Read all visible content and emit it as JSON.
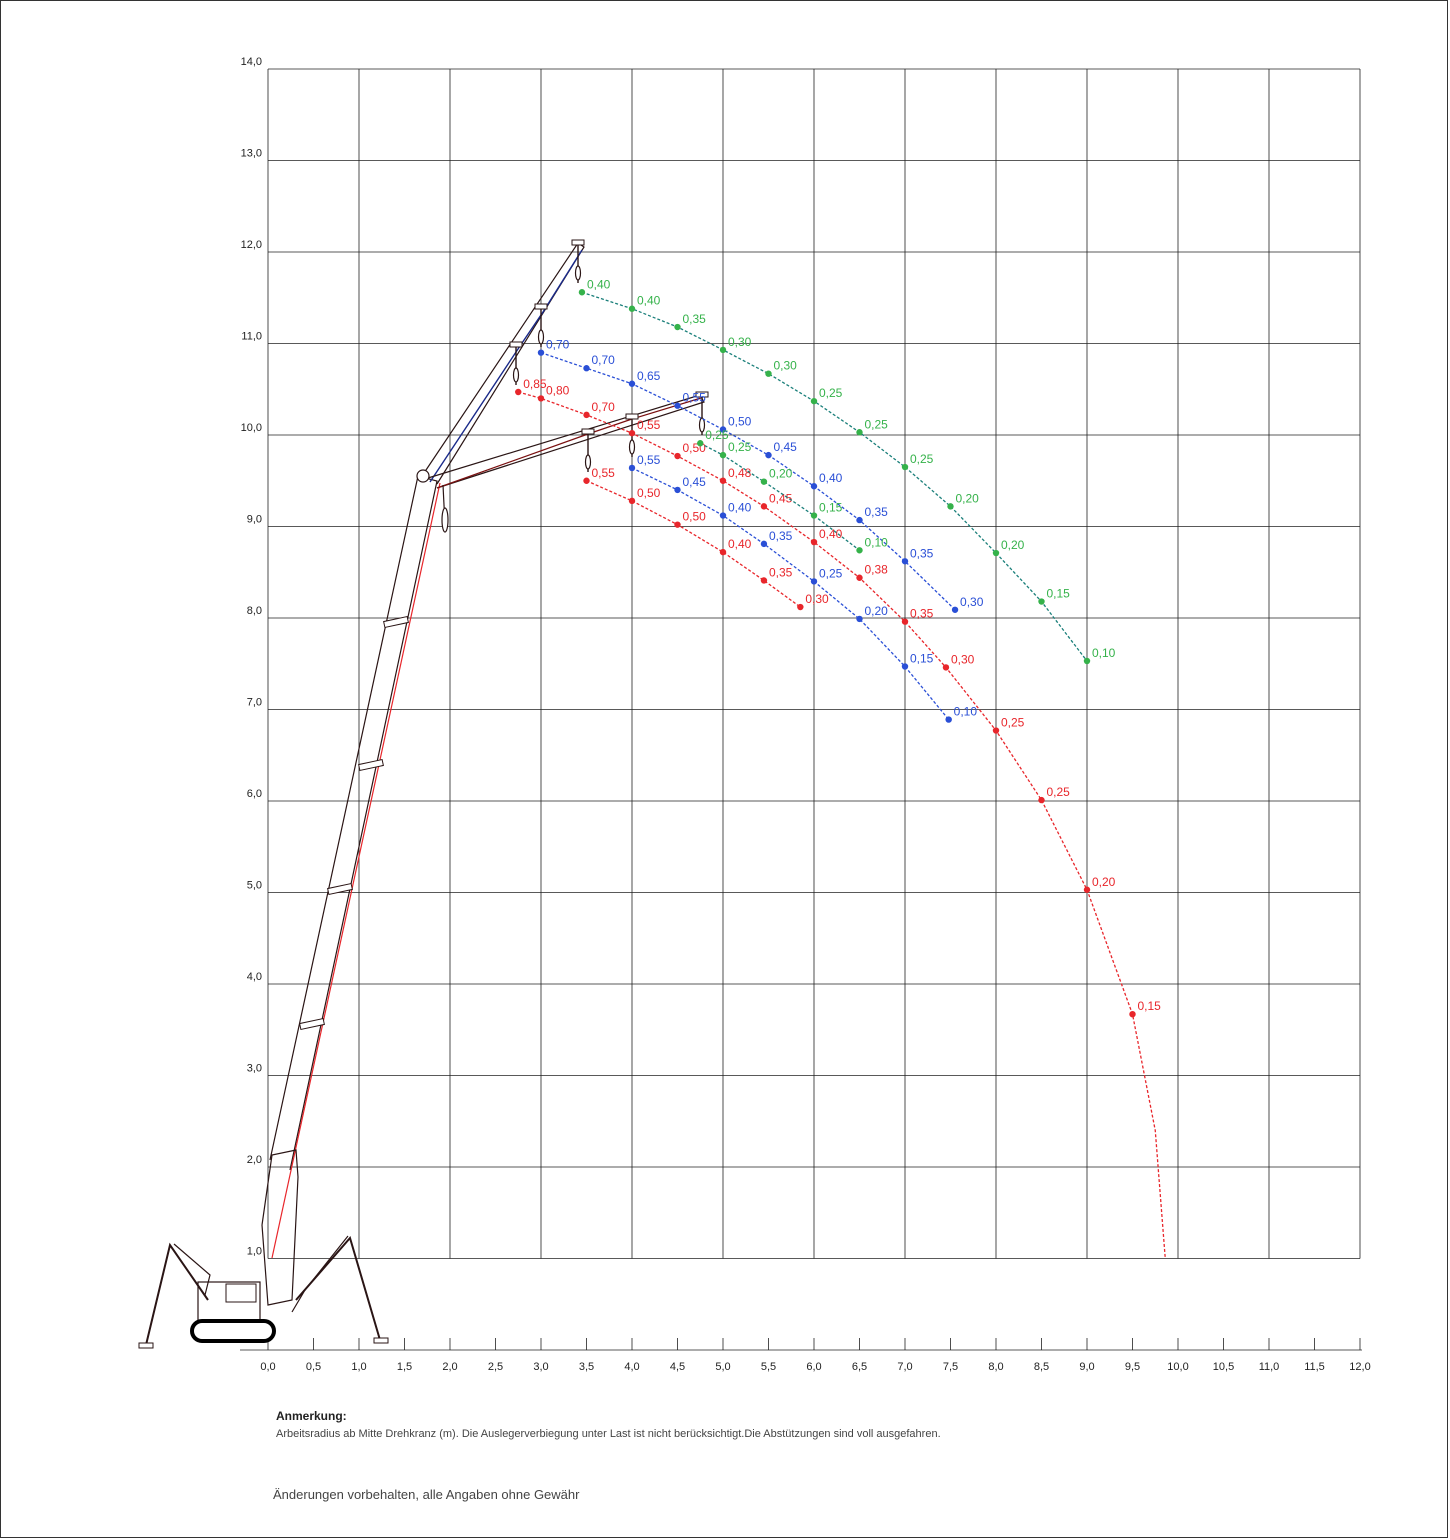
{
  "chart_data": {
    "type": "scatter",
    "xlim": [
      0,
      12
    ],
    "ylim": [
      0,
      14
    ],
    "xticks": [
      "0,0",
      "0,5",
      "1,0",
      "1,5",
      "2,0",
      "2,5",
      "3,0",
      "3,5",
      "4,0",
      "4,5",
      "5,0",
      "5,5",
      "6,0",
      "6,5",
      "7,0",
      "7,5",
      "8,0",
      "8,5",
      "9,0",
      "9,5",
      "10,0",
      "10,5",
      "11,0",
      "11,5",
      "12,0"
    ],
    "yticks": [
      "1,0",
      "2,0",
      "3,0",
      "4,0",
      "5,0",
      "6,0",
      "7,0",
      "8,0",
      "9,0",
      "10,0",
      "11,0",
      "12,0",
      "13,0",
      "14,0"
    ],
    "grid": true,
    "colors": {
      "red": "#e8262b",
      "blue": "#2a4fd6",
      "green": "#35b24a",
      "teal": "#1a7f7a"
    },
    "series": [
      {
        "color": "#e8262b",
        "points": [
          {
            "x": 2.75,
            "y": 10.47,
            "label": "0,85"
          },
          {
            "x": 3.0,
            "y": 10.4,
            "label": "0,80"
          },
          {
            "x": 3.5,
            "y": 10.22,
            "label": "0,70"
          },
          {
            "x": 4.0,
            "y": 10.02,
            "label": "0,55"
          },
          {
            "x": 4.5,
            "y": 9.77,
            "label": "0,50"
          },
          {
            "x": 5.0,
            "y": 9.5,
            "label": "0,48"
          },
          {
            "x": 5.45,
            "y": 9.22,
            "label": "0,45"
          },
          {
            "x": 6.0,
            "y": 8.83,
            "label": "0,40"
          },
          {
            "x": 6.5,
            "y": 8.44,
            "label": "0,38"
          },
          {
            "x": 7.0,
            "y": 7.96,
            "label": "0,35"
          },
          {
            "x": 7.45,
            "y": 7.46,
            "label": "0,30"
          },
          {
            "x": 8.0,
            "y": 6.77,
            "label": "0,25"
          },
          {
            "x": 8.5,
            "y": 6.01,
            "label": "0,25"
          },
          {
            "x": 9.0,
            "y": 5.03,
            "label": "0,20"
          },
          {
            "x": 9.5,
            "y": 3.67,
            "label": "0,15"
          }
        ]
      },
      {
        "color": "#e8262b",
        "points": [
          {
            "x": 3.5,
            "y": 9.5,
            "label": "0,55"
          },
          {
            "x": 4.0,
            "y": 9.28,
            "label": "0,50"
          },
          {
            "x": 4.5,
            "y": 9.02,
            "label": "0,50"
          },
          {
            "x": 5.0,
            "y": 8.72,
            "label": "0,40"
          },
          {
            "x": 5.45,
            "y": 8.41,
            "label": "0,35"
          },
          {
            "x": 5.85,
            "y": 8.12,
            "label": "0,30"
          }
        ]
      },
      {
        "color": "#2a4fd6",
        "points": [
          {
            "x": 3.0,
            "y": 10.9,
            "label": "0,70"
          },
          {
            "x": 3.5,
            "y": 10.73,
            "label": "0,70"
          },
          {
            "x": 4.0,
            "y": 10.56,
            "label": "0,65"
          },
          {
            "x": 4.5,
            "y": 10.32,
            "label": "0,55"
          },
          {
            "x": 5.0,
            "y": 10.06,
            "label": "0,50"
          },
          {
            "x": 5.5,
            "y": 9.78,
            "label": "0,45"
          },
          {
            "x": 6.0,
            "y": 9.44,
            "label": "0,40"
          },
          {
            "x": 6.5,
            "y": 9.07,
            "label": "0,35"
          },
          {
            "x": 7.0,
            "y": 8.62,
            "label": "0,35"
          },
          {
            "x": 7.55,
            "y": 8.09,
            "label": "0,30"
          }
        ]
      },
      {
        "color": "#2a4fd6",
        "points": [
          {
            "x": 4.0,
            "y": 9.64,
            "label": "0,55"
          },
          {
            "x": 4.5,
            "y": 9.4,
            "label": "0,45"
          },
          {
            "x": 5.0,
            "y": 9.12,
            "label": "0,40"
          },
          {
            "x": 5.45,
            "y": 8.81,
            "label": "0,35"
          },
          {
            "x": 6.0,
            "y": 8.4,
            "label": "0,25"
          },
          {
            "x": 6.5,
            "y": 7.99,
            "label": "0,20"
          },
          {
            "x": 7.0,
            "y": 7.47,
            "label": "0,15"
          },
          {
            "x": 7.48,
            "y": 6.89,
            "label": "0,10"
          }
        ]
      },
      {
        "color": "#35b24a",
        "points": [
          {
            "x": 3.45,
            "y": 11.56,
            "label": "0,40"
          },
          {
            "x": 4.0,
            "y": 11.38,
            "label": "0,40"
          },
          {
            "x": 4.5,
            "y": 11.18,
            "label": "0,35"
          },
          {
            "x": 5.0,
            "y": 10.93,
            "label": "0,30"
          },
          {
            "x": 5.5,
            "y": 10.67,
            "label": "0,30"
          },
          {
            "x": 6.0,
            "y": 10.37,
            "label": "0,25"
          },
          {
            "x": 6.5,
            "y": 10.03,
            "label": "0,25"
          },
          {
            "x": 7.0,
            "y": 9.65,
            "label": "0,25"
          },
          {
            "x": 7.5,
            "y": 9.22,
            "label": "0,20"
          },
          {
            "x": 8.0,
            "y": 8.71,
            "label": "0,20"
          },
          {
            "x": 8.5,
            "y": 8.18,
            "label": "0,15"
          },
          {
            "x": 9.0,
            "y": 7.53,
            "label": "0,10"
          }
        ]
      },
      {
        "color": "#35b24a",
        "points": [
          {
            "x": 4.75,
            "y": 9.91,
            "label": "0,25"
          },
          {
            "x": 5.0,
            "y": 9.78,
            "label": "0,25"
          },
          {
            "x": 5.45,
            "y": 9.49,
            "label": "0,20"
          },
          {
            "x": 6.0,
            "y": 9.12,
            "label": "0,15"
          },
          {
            "x": 6.5,
            "y": 8.74,
            "label": "0,10"
          }
        ]
      }
    ]
  },
  "notes": {
    "title": "Anmerkung:",
    "text": "Arbeitsradius ab Mitte Drehkranz (m). Die Auslegerverbiegung unter Last ist nicht berücksichtigt.Die Abstützungen sind voll ausgefahren.",
    "disclaimer": "Änderungen vorbehalten, alle Angaben ohne Gewähr"
  },
  "crane_icon": "spider-crane-icon"
}
